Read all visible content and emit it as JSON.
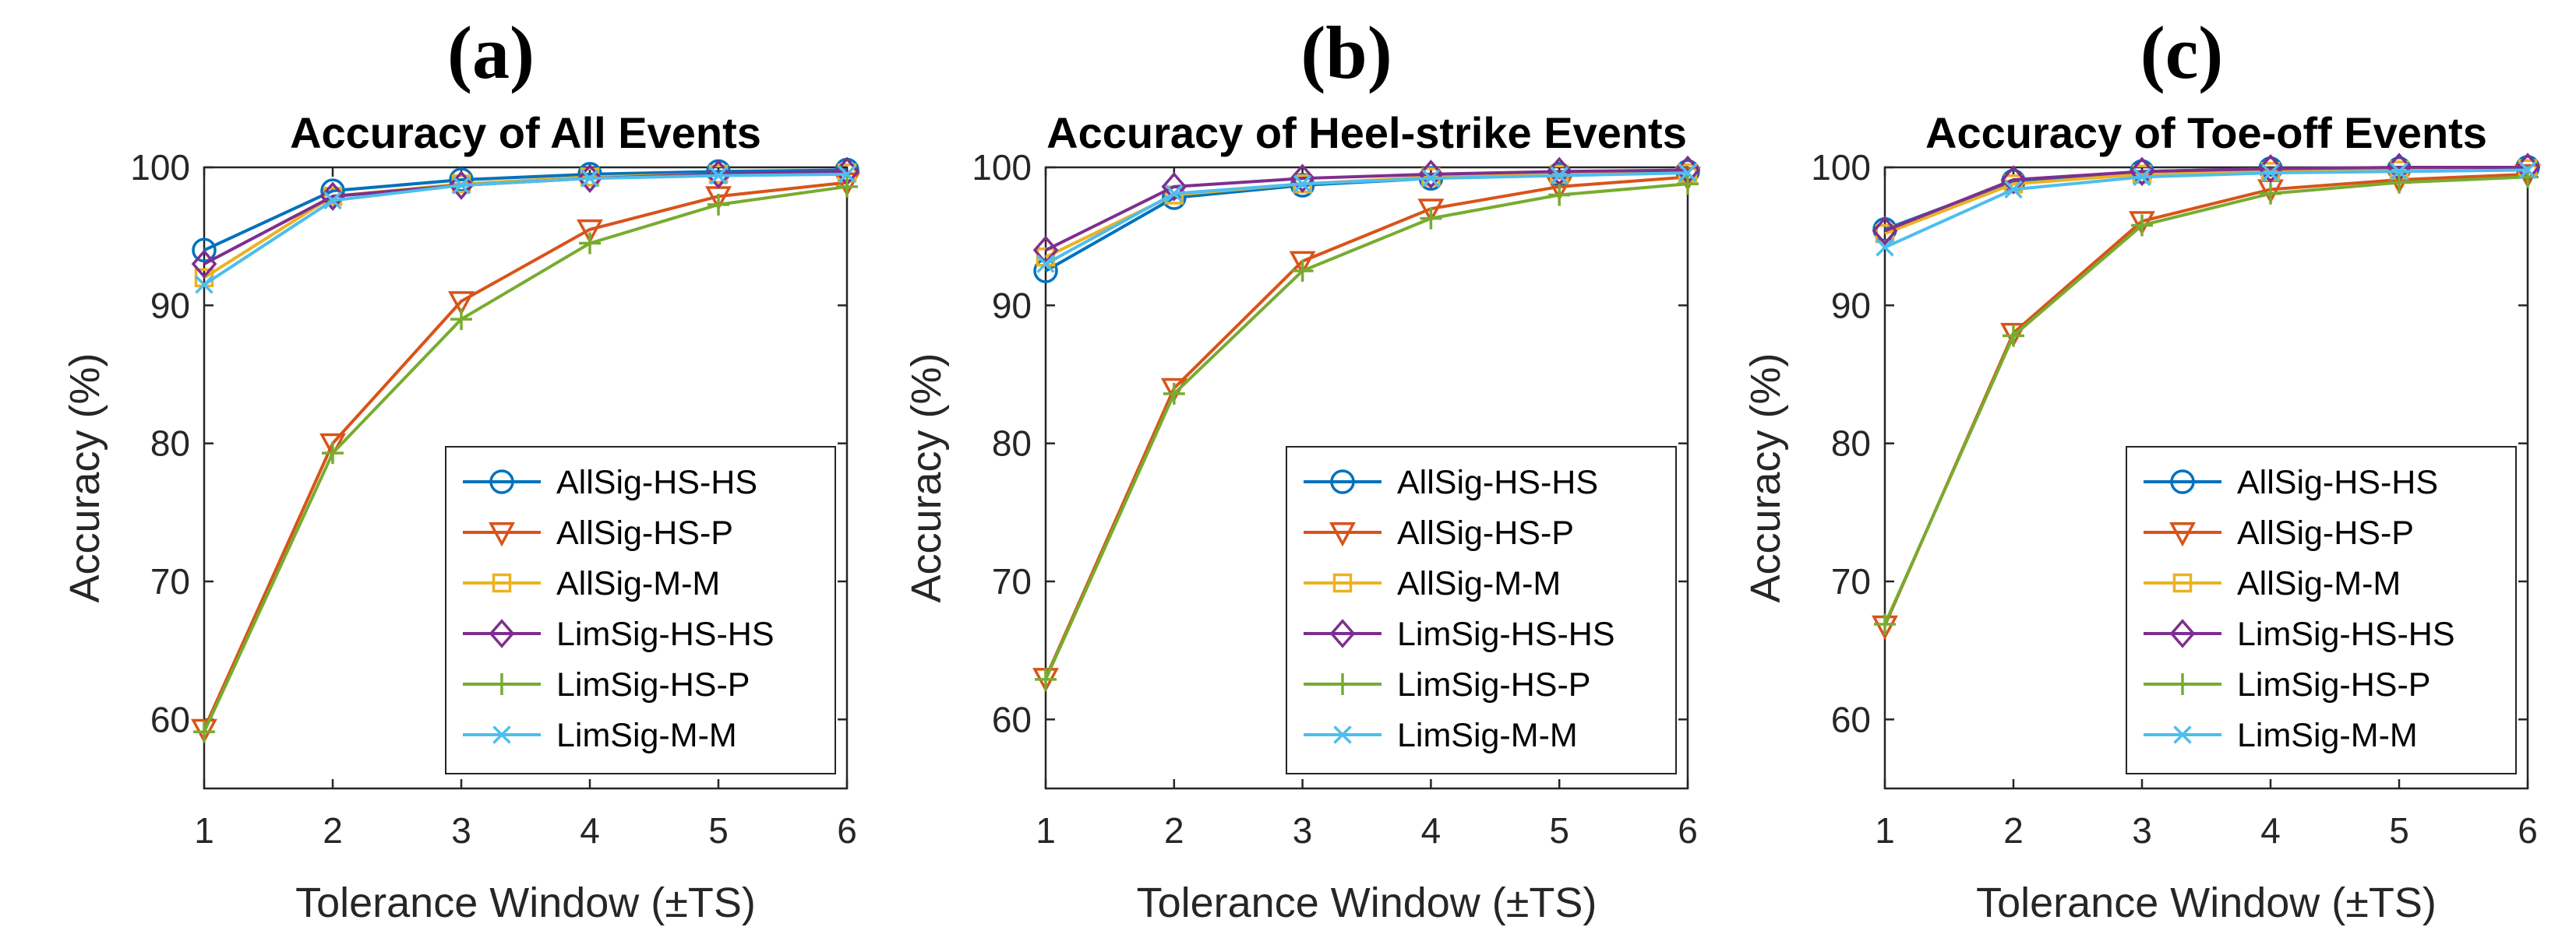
{
  "chart_data": [
    {
      "type": "line",
      "panel": "(a)",
      "title": "Accuracy of All Events",
      "xlabel": "Tolerance Window (±TS)",
      "ylabel": "Accuracy (%)",
      "x": [
        1,
        2,
        3,
        4,
        5,
        6
      ],
      "xlim": [
        1,
        6
      ],
      "ylim": [
        55,
        100
      ],
      "xticks": [
        "1",
        "2",
        "3",
        "4",
        "5",
        "6"
      ],
      "yticks": [
        "60",
        "70",
        "80",
        "90",
        "100"
      ],
      "legend_position": "bottom-right",
      "series": [
        {
          "name": "AllSig-HS-HS",
          "values": [
            94.0,
            98.3,
            99.1,
            99.5,
            99.7,
            99.8
          ]
        },
        {
          "name": "AllSig-HS-P",
          "values": [
            59.3,
            80.0,
            90.3,
            95.5,
            97.9,
            98.9
          ]
        },
        {
          "name": "AllSig-M-M",
          "values": [
            92.0,
            97.9,
            98.8,
            99.3,
            99.5,
            99.6
          ]
        },
        {
          "name": "LimSig-HS-HS",
          "values": [
            93.0,
            97.9,
            98.7,
            99.2,
            99.5,
            99.7
          ]
        },
        {
          "name": "LimSig-HS-P",
          "values": [
            59.1,
            79.3,
            89.0,
            94.5,
            97.3,
            98.6
          ]
        },
        {
          "name": "LimSig-M-M",
          "values": [
            91.5,
            97.6,
            98.7,
            99.2,
            99.4,
            99.5
          ]
        }
      ]
    },
    {
      "type": "line",
      "panel": "(b)",
      "title": "Accuracy of Heel-strike Events",
      "xlabel": "Tolerance Window (±TS)",
      "ylabel": "Accuracy (%)",
      "x": [
        1,
        2,
        3,
        4,
        5,
        6
      ],
      "xlim": [
        1,
        6
      ],
      "ylim": [
        55,
        100
      ],
      "xticks": [
        "1",
        "2",
        "3",
        "4",
        "5",
        "6"
      ],
      "yticks": [
        "60",
        "70",
        "80",
        "90",
        "100"
      ],
      "legend_position": "bottom-right",
      "series": [
        {
          "name": "AllSig-HS-HS",
          "values": [
            92.5,
            97.8,
            98.7,
            99.2,
            99.5,
            99.7
          ]
        },
        {
          "name": "AllSig-HS-P",
          "values": [
            63.0,
            84.0,
            93.2,
            97.0,
            98.6,
            99.3
          ]
        },
        {
          "name": "AllSig-M-M",
          "values": [
            93.5,
            98.0,
            98.8,
            99.3,
            99.5,
            99.6
          ]
        },
        {
          "name": "LimSig-HS-HS",
          "values": [
            94.0,
            98.6,
            99.2,
            99.5,
            99.7,
            99.8
          ]
        },
        {
          "name": "LimSig-HS-P",
          "values": [
            62.9,
            83.6,
            92.5,
            96.3,
            98.0,
            98.8
          ]
        },
        {
          "name": "LimSig-M-M",
          "values": [
            93.0,
            98.1,
            98.8,
            99.2,
            99.4,
            99.6
          ]
        }
      ]
    },
    {
      "type": "line",
      "panel": "(c)",
      "title": "Accuracy of Toe-off Events",
      "xlabel": "Tolerance Window (±TS)",
      "ylabel": "Accuracy (%)",
      "x": [
        1,
        2,
        3,
        4,
        5,
        6
      ],
      "xlim": [
        1,
        6
      ],
      "ylim": [
        55,
        100
      ],
      "xticks": [
        "1",
        "2",
        "3",
        "4",
        "5",
        "6"
      ],
      "yticks": [
        "60",
        "70",
        "80",
        "90",
        "100"
      ],
      "legend_position": "bottom-right",
      "series": [
        {
          "name": "AllSig-HS-HS",
          "values": [
            95.5,
            99.0,
            99.7,
            99.9,
            99.9,
            100.0
          ]
        },
        {
          "name": "AllSig-HS-P",
          "values": [
            66.8,
            88.0,
            96.1,
            98.4,
            99.1,
            99.5
          ]
        },
        {
          "name": "AllSig-M-M",
          "values": [
            95.2,
            98.8,
            99.5,
            99.7,
            99.8,
            99.9
          ]
        },
        {
          "name": "LimSig-HS-HS",
          "values": [
            95.4,
            99.1,
            99.7,
            99.9,
            100.0,
            100.0
          ]
        },
        {
          "name": "LimSig-HS-P",
          "values": [
            66.9,
            87.8,
            95.8,
            98.1,
            98.9,
            99.3
          ]
        },
        {
          "name": "LimSig-M-M",
          "values": [
            94.2,
            98.4,
            99.3,
            99.6,
            99.7,
            99.8
          ]
        }
      ]
    }
  ],
  "colors": {
    "AllSig-HS-HS": "#0072BD",
    "AllSig-HS-P": "#D95319",
    "AllSig-M-M": "#EDB120",
    "LimSig-HS-HS": "#7E2F8E",
    "LimSig-HS-P": "#77AC30",
    "LimSig-M-M": "#4DBEEE"
  },
  "markers": {
    "AllSig-HS-HS": "circle",
    "AllSig-HS-P": "triangle-down",
    "AllSig-M-M": "square",
    "LimSig-HS-HS": "diamond",
    "LimSig-HS-P": "plus",
    "LimSig-M-M": "cross"
  }
}
